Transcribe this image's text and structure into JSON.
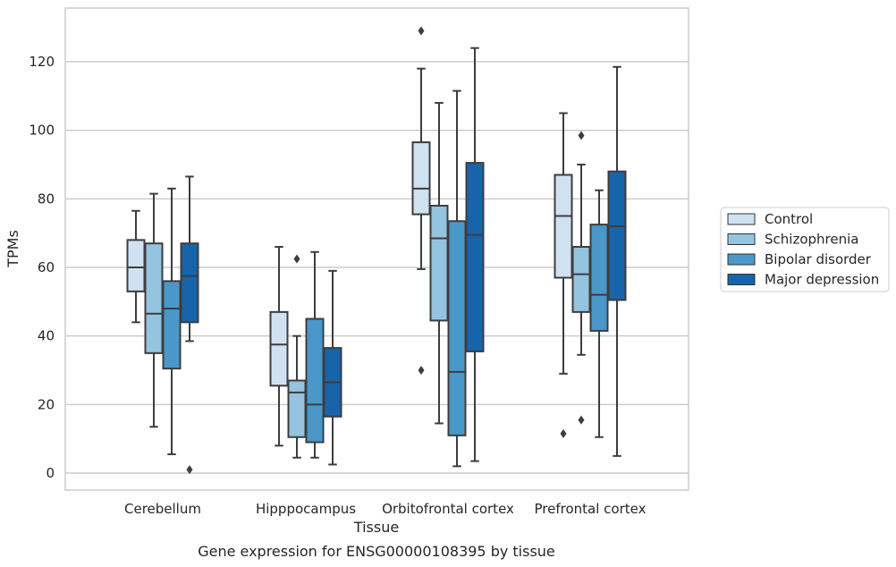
{
  "chart_data": {
    "type": "boxplot",
    "caption": "Gene expression for ENSG00000108395 by tissue",
    "xlabel": "Tissue",
    "ylabel": "TPMs",
    "ylim": [
      -5,
      135
    ],
    "yticks": [
      0,
      20,
      40,
      60,
      80,
      100,
      120
    ],
    "grid": "horizontal",
    "legend_position": "right",
    "categories": [
      "Cerebellum",
      "Hipppocampus",
      "Orbitofrontal cortex",
      "Prefrontal cortex"
    ],
    "series": [
      {
        "name": "Control",
        "color": "#d0e1f2",
        "boxes": [
          {
            "whislo": 44,
            "q1": 53,
            "med": 60,
            "q3": 68,
            "whishi": 76.5,
            "fliers": []
          },
          {
            "whislo": 8,
            "q1": 25.5,
            "med": 37.5,
            "q3": 47,
            "whishi": 66,
            "fliers": []
          },
          {
            "whislo": 59.5,
            "q1": 75.5,
            "med": 83,
            "q3": 96.5,
            "whishi": 118,
            "fliers": [
              129,
              30
            ]
          },
          {
            "whislo": 29,
            "q1": 57,
            "med": 75,
            "q3": 87,
            "whishi": 105,
            "fliers": [
              11.5
            ]
          }
        ]
      },
      {
        "name": "Schizophrenia",
        "color": "#94c4df",
        "boxes": [
          {
            "whislo": 13.5,
            "q1": 35,
            "med": 46.5,
            "q3": 67,
            "whishi": 81.5,
            "fliers": []
          },
          {
            "whislo": 4.5,
            "q1": 10.5,
            "med": 23.5,
            "q3": 27,
            "whishi": 40,
            "fliers": [
              62.5
            ]
          },
          {
            "whislo": 14.5,
            "q1": 44.5,
            "med": 68.5,
            "q3": 78,
            "whishi": 108,
            "fliers": []
          },
          {
            "whislo": 34.5,
            "q1": 47,
            "med": 58,
            "q3": 66,
            "whishi": 90,
            "fliers": [
              98.5,
              15.5
            ]
          }
        ]
      },
      {
        "name": "Bipolar disorder",
        "color": "#4a98c9",
        "boxes": [
          {
            "whislo": 5.5,
            "q1": 30.5,
            "med": 48,
            "q3": 56,
            "whishi": 83,
            "fliers": []
          },
          {
            "whislo": 4.5,
            "q1": 9,
            "med": 20,
            "q3": 45,
            "whishi": 64.5,
            "fliers": []
          },
          {
            "whislo": 2,
            "q1": 11,
            "med": 29.5,
            "q3": 73.5,
            "whishi": 111.5,
            "fliers": []
          },
          {
            "whislo": 10.5,
            "q1": 41.5,
            "med": 52,
            "q3": 72.5,
            "whishi": 82.5,
            "fliers": []
          }
        ]
      },
      {
        "name": "Major depression",
        "color": "#1764ab",
        "boxes": [
          {
            "whislo": 38.5,
            "q1": 44,
            "med": 57.5,
            "q3": 67,
            "whishi": 86.5,
            "fliers": [
              1
            ]
          },
          {
            "whislo": 2.5,
            "q1": 16.5,
            "med": 26.5,
            "q3": 36.5,
            "whishi": 59,
            "fliers": []
          },
          {
            "whislo": 3.5,
            "q1": 35.5,
            "med": 69.5,
            "q3": 90.5,
            "whishi": 124,
            "fliers": []
          },
          {
            "whislo": 5,
            "q1": 50.5,
            "med": 72,
            "q3": 88,
            "whishi": 118.5,
            "fliers": []
          }
        ]
      }
    ]
  }
}
